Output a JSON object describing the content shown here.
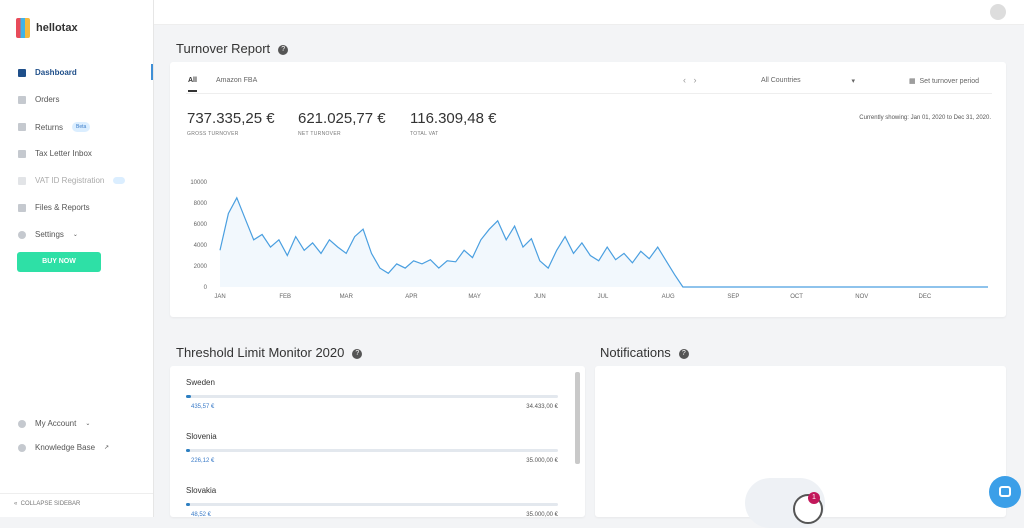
{
  "sidebar": {
    "logo": "hellotax",
    "nav": [
      {
        "label": "Dashboard"
      },
      {
        "label": "Orders"
      },
      {
        "label": "Returns",
        "badge": "Beta"
      },
      {
        "label": "Tax Letter Inbox"
      },
      {
        "label": "VAT ID Registration"
      },
      {
        "label": "Files & Reports"
      },
      {
        "label": "Settings"
      }
    ],
    "button": "BUY NOW",
    "bottom": [
      "My Account",
      "Knowledge Base"
    ],
    "collapse": "COLLAPSE SIDEBAR"
  },
  "turnover": {
    "title": "Turnover Report",
    "tabs": [
      "All",
      "Amazon FBA"
    ],
    "country_select": "All Countries",
    "period": "Set turnover period",
    "stats": [
      {
        "value": "737.335,25 €",
        "label": "GROSS TURNOVER"
      },
      {
        "value": "621.025,77 €",
        "label": "NET TURNOVER"
      },
      {
        "value": "116.309,48 €",
        "label": "TOTAL VAT"
      }
    ],
    "showing": "Currently showing: Jan 01, 2020 to Dec 31, 2020."
  },
  "chart_data": {
    "type": "line",
    "color": "#4a9fe0",
    "area": true,
    "x": [
      1,
      5,
      9,
      13,
      17,
      21,
      25,
      29,
      33,
      37,
      41,
      45,
      49,
      53,
      57,
      61,
      65,
      69,
      73,
      77,
      81,
      85,
      89,
      93,
      97,
      101,
      105,
      109,
      113,
      117,
      121,
      125,
      129,
      133,
      137,
      141,
      145,
      149,
      153,
      157,
      161,
      165,
      169,
      173,
      177,
      181,
      185,
      189,
      193,
      197,
      201,
      205,
      209,
      213,
      217,
      221,
      366
    ],
    "values": [
      3500,
      7000,
      8500,
      6500,
      4500,
      5000,
      3800,
      4500,
      3000,
      4800,
      3500,
      4200,
      3200,
      4500,
      3800,
      3200,
      4800,
      5500,
      3200,
      1800,
      1300,
      2200,
      1800,
      2500,
      2200,
      2600,
      1800,
      2500,
      2400,
      3500,
      2800,
      4500,
      5500,
      6300,
      4500,
      5800,
      3800,
      4600,
      2500,
      1800,
      3500,
      4800,
      3200,
      4200,
      3000,
      2500,
      3800,
      2600,
      3200,
      2300,
      3400,
      2700,
      3800,
      2500,
      1200,
      0,
      0
    ],
    "xlim": [
      1,
      366
    ],
    "xticks": [
      {
        "value": 1,
        "label": "JAN"
      },
      {
        "value": 32,
        "label": "FEB"
      },
      {
        "value": 61,
        "label": "MAR"
      },
      {
        "value": 92,
        "label": "APR"
      },
      {
        "value": 122,
        "label": "MAY"
      },
      {
        "value": 153,
        "label": "JUN"
      },
      {
        "value": 183,
        "label": "JUL"
      },
      {
        "value": 214,
        "label": "AUG"
      },
      {
        "value": 245,
        "label": "SEP"
      },
      {
        "value": 275,
        "label": "OCT"
      },
      {
        "value": 306,
        "label": "NOV"
      },
      {
        "value": 336,
        "label": "DEC"
      }
    ],
    "ylim": [
      0,
      10000
    ],
    "yticks": [
      0,
      2000,
      4000,
      6000,
      8000,
      10000
    ]
  },
  "threshold": {
    "title": "Threshold Limit Monitor 2020",
    "rows": [
      {
        "country": "Sweden",
        "current": {
          "value": 435.57,
          "label": "435,57 €"
        },
        "limit": {
          "value": 34433,
          "label": "34.433,00 €"
        }
      },
      {
        "country": "Slovenia",
        "current": {
          "value": 226.12,
          "label": "226,12 €"
        },
        "limit": {
          "value": 35000,
          "label": "35.000,00 €"
        }
      },
      {
        "country": "Slovakia",
        "current": {
          "value": 48.52,
          "label": "48,52 €"
        },
        "limit": {
          "value": 35000,
          "label": "35.000,00 €"
        }
      }
    ]
  },
  "notifications": {
    "title": "Notifications",
    "badge": "1"
  }
}
